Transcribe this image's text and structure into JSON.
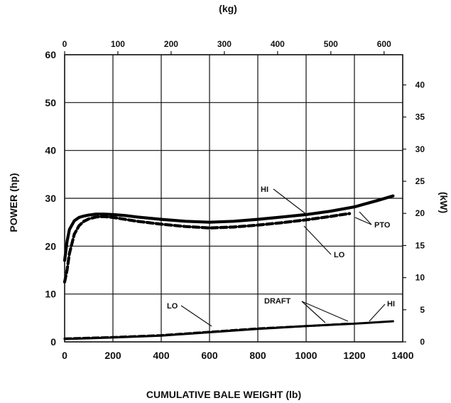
{
  "chart_data": {
    "type": "line",
    "title": "",
    "xlabel": "CUMULATIVE BALE WEIGHT (lb)",
    "ylabel": "POWER (hp)",
    "top_axis_label": "(kg)",
    "right_axis_label": "(kW)",
    "xlim": [
      0,
      1400
    ],
    "ylim": [
      0,
      60
    ],
    "top_xlim": [
      0,
      635
    ],
    "right_ylim": [
      0,
      44.7
    ],
    "x_ticks": [
      "0",
      "200",
      "400",
      "600",
      "800",
      "1000",
      "1200",
      "1400"
    ],
    "y_ticks": [
      "0",
      "10",
      "20",
      "30",
      "40",
      "50",
      "60"
    ],
    "top_ticks": [
      "0",
      "100",
      "200",
      "300",
      "400",
      "500",
      "600"
    ],
    "right_ticks": [
      "0",
      "5",
      "10",
      "15",
      "20",
      "25",
      "30",
      "35",
      "40"
    ],
    "grid": true,
    "series": [
      {
        "name": "PTO HI",
        "style": "solid",
        "x": [
          0,
          10,
          20,
          40,
          60,
          80,
          100,
          130,
          160,
          200,
          250,
          300,
          400,
          500,
          600,
          700,
          800,
          900,
          1000,
          1100,
          1200,
          1300,
          1360
        ],
        "y": [
          17,
          21,
          23.5,
          25.3,
          26,
          26.3,
          26.5,
          26.7,
          26.7,
          26.6,
          26.4,
          26.1,
          25.6,
          25.2,
          25.0,
          25.2,
          25.6,
          26.1,
          26.6,
          27.3,
          28.2,
          29.6,
          30.5
        ]
      },
      {
        "name": "PTO LO",
        "style": "dashed",
        "x": [
          0,
          10,
          20,
          40,
          60,
          80,
          100,
          130,
          160,
          200,
          250,
          300,
          400,
          500,
          600,
          700,
          800,
          900,
          1000,
          1100,
          1150,
          1180
        ],
        "y": [
          12.5,
          15,
          18.5,
          22.5,
          24.3,
          25.2,
          25.7,
          26.1,
          26.2,
          26.0,
          25.6,
          25.2,
          24.6,
          24.1,
          23.8,
          24.0,
          24.4,
          24.9,
          25.5,
          26.2,
          26.6,
          26.8
        ]
      },
      {
        "name": "DRAFT LO",
        "style": "dashed",
        "x": [
          0,
          200,
          400,
          600,
          800,
          1000,
          1180
        ],
        "y": [
          0.7,
          1.0,
          1.4,
          2.1,
          2.8,
          3.3,
          3.8
        ]
      },
      {
        "name": "DRAFT HI",
        "style": "solid",
        "x": [
          0,
          200,
          400,
          600,
          800,
          1000,
          1200,
          1360
        ],
        "y": [
          0.6,
          0.9,
          1.3,
          2.0,
          2.7,
          3.3,
          3.8,
          4.3
        ]
      }
    ],
    "annotations": [
      "HI",
      "LO",
      "PTO",
      "LO",
      "DRAFT",
      "HI"
    ]
  }
}
